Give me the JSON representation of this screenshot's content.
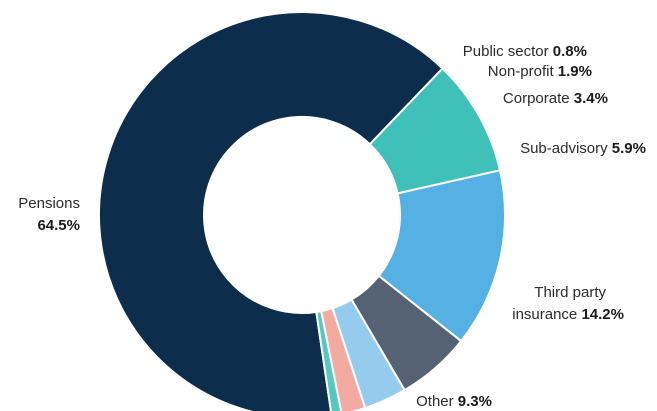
{
  "chart_data": {
    "type": "pie",
    "style": "donut",
    "slices": [
      {
        "name": "Pensions",
        "value": 64.5,
        "display": "64.5%",
        "color": "#0d2d4d"
      },
      {
        "name": "Other",
        "value": 9.3,
        "display": "9.3%",
        "color": "#3fc1b9"
      },
      {
        "name": "Third party insurance",
        "name_lines": [
          "Third party",
          "insurance"
        ],
        "value": 14.2,
        "display": "14.2%",
        "color": "#55b1e4"
      },
      {
        "name": "Sub-advisory",
        "value": 5.9,
        "display": "5.9%",
        "color": "#556274"
      },
      {
        "name": "Corporate",
        "value": 3.4,
        "display": "3.4%",
        "color": "#95cbec"
      },
      {
        "name": "Non-profit",
        "value": 1.9,
        "display": "1.9%",
        "color": "#f2aaa1"
      },
      {
        "name": "Public sector",
        "value": 0.8,
        "display": "0.8%",
        "color": "#55c8c0"
      }
    ]
  }
}
